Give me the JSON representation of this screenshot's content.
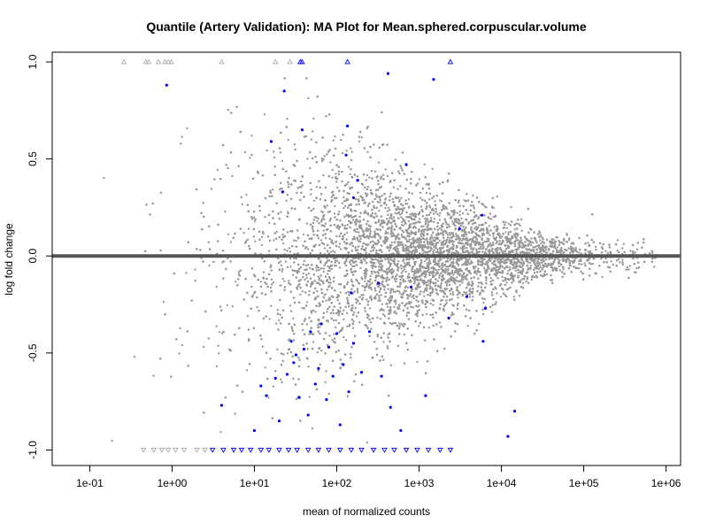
{
  "chart_data": {
    "type": "scatter",
    "title": "Quantile (Artery Validation): MA Plot for Mean.sphered.corpuscular.volume",
    "xlabel": "mean of normalized counts",
    "ylabel": "log fold change",
    "x_scale": "log10",
    "xlim": [
      0.035,
      1500000
    ],
    "ylim": [
      -1.08,
      1.05
    ],
    "x_ticks": [
      {
        "value": 0.1,
        "label": "1e-01"
      },
      {
        "value": 1,
        "label": "1e+00"
      },
      {
        "value": 10,
        "label": "1e+01"
      },
      {
        "value": 100,
        "label": "1e+02"
      },
      {
        "value": 1000,
        "label": "1e+03"
      },
      {
        "value": 10000,
        "label": "1e+04"
      },
      {
        "value": 100000,
        "label": "1e+05"
      },
      {
        "value": 1000000,
        "label": "1e+06"
      }
    ],
    "y_ticks": [
      {
        "value": -1.0,
        "label": "-1.0"
      },
      {
        "value": -0.5,
        "label": "-0.5"
      },
      {
        "value": 0.0,
        "label": "0.0"
      },
      {
        "value": 0.5,
        "label": "0.5"
      },
      {
        "value": 1.0,
        "label": "1.0"
      }
    ],
    "reference_line_y": 0,
    "colors": {
      "non_significant": "#999999",
      "significant": "#0000ff",
      "reference_line": "#555555",
      "outlier_gray": "#aaaaaa"
    },
    "series": [
      {
        "group": "significant",
        "points": [
          [
            0.86,
            0.88
          ],
          [
            16.0,
            0.59
          ],
          [
            22.0,
            0.33
          ],
          [
            23.0,
            0.85
          ],
          [
            38.0,
            0.65
          ],
          [
            135.0,
            0.67
          ],
          [
            160.0,
            0.3
          ],
          [
            180.0,
            0.39
          ],
          [
            700.0,
            0.47
          ],
          [
            130.0,
            0.52
          ],
          [
            420.0,
            0.94
          ],
          [
            1500.0,
            0.91
          ],
          [
            5800.0,
            0.21
          ],
          [
            3100.0,
            0.14
          ],
          [
            4.0,
            -0.77
          ],
          [
            10.0,
            -0.9
          ],
          [
            12.0,
            -0.67
          ],
          [
            14.0,
            -0.72
          ],
          [
            18.0,
            -0.63
          ],
          [
            20.0,
            -0.85
          ],
          [
            25.0,
            -0.61
          ],
          [
            28.0,
            -0.44
          ],
          [
            30.0,
            -0.55
          ],
          [
            32.0,
            -0.51
          ],
          [
            35.0,
            -0.73
          ],
          [
            40.0,
            -0.48
          ],
          [
            45.0,
            -0.82
          ],
          [
            48.0,
            -0.39
          ],
          [
            55.0,
            -0.66
          ],
          [
            60.0,
            -0.58
          ],
          [
            65.0,
            -0.35
          ],
          [
            75.0,
            -0.74
          ],
          [
            80.0,
            -0.47
          ],
          [
            90.0,
            -0.62
          ],
          [
            100.0,
            -0.4
          ],
          [
            110.0,
            -0.87
          ],
          [
            120.0,
            -0.56
          ],
          [
            140.0,
            -0.7
          ],
          [
            160.0,
            -0.45
          ],
          [
            200.0,
            -0.6
          ],
          [
            250.0,
            -0.39
          ],
          [
            350.0,
            -0.62
          ],
          [
            450.0,
            -0.78
          ],
          [
            600.0,
            -0.9
          ],
          [
            800.0,
            -0.16
          ],
          [
            1200.0,
            -0.72
          ],
          [
            2300.0,
            -0.32
          ],
          [
            6000.0,
            -0.44
          ],
          [
            12000.0,
            -0.93
          ],
          [
            14500.0,
            -0.8
          ],
          [
            6400.0,
            -0.27
          ],
          [
            3800.0,
            -0.21
          ],
          [
            320.0,
            -0.14
          ],
          [
            150.0,
            -0.19
          ]
        ]
      },
      {
        "group": "outlier_up",
        "points": [
          [
            0.26,
            1.0
          ],
          [
            0.48,
            1.0
          ],
          [
            0.52,
            1.0
          ],
          [
            0.68,
            1.0
          ],
          [
            0.82,
            1.0
          ],
          [
            0.9,
            1.0
          ],
          [
            0.98,
            1.0
          ],
          [
            4.0,
            1.0
          ],
          [
            18.0,
            1.0
          ],
          [
            27.0,
            1.0
          ],
          [
            36.0,
            1.0
          ],
          [
            38.0,
            1.0
          ],
          [
            135.0,
            1.0
          ],
          [
            2400.0,
            1.0
          ]
        ]
      },
      {
        "group": "outlier_down",
        "points": [
          [
            0.45,
            -1.0
          ],
          [
            0.6,
            -1.0
          ],
          [
            0.75,
            -1.0
          ],
          [
            0.9,
            -1.0
          ],
          [
            1.1,
            -1.0
          ],
          [
            1.4,
            -1.0
          ],
          [
            2.0,
            -1.0
          ],
          [
            2.5,
            -1.0
          ],
          [
            3.1,
            -1.0
          ],
          [
            4.2,
            -1.0
          ],
          [
            5.6,
            -1.0
          ],
          [
            7.0,
            -1.0
          ],
          [
            9.0,
            -1.0
          ],
          [
            12.0,
            -1.0
          ],
          [
            15.0,
            -1.0
          ],
          [
            20.0,
            -1.0
          ],
          [
            26.0,
            -1.0
          ],
          [
            33.0,
            -1.0
          ],
          [
            45.0,
            -1.0
          ],
          [
            60.0,
            -1.0
          ],
          [
            80.0,
            -1.0
          ],
          [
            110.0,
            -1.0
          ],
          [
            150.0,
            -1.0
          ],
          [
            200.0,
            -1.0
          ],
          [
            280.0,
            -1.0
          ],
          [
            380.0,
            -1.0
          ],
          [
            500.0,
            -1.0
          ],
          [
            700.0,
            -1.0
          ],
          [
            950.0,
            -1.0
          ],
          [
            1300.0,
            -1.0
          ],
          [
            1800.0,
            -1.0
          ],
          [
            2400.0,
            -1.0
          ]
        ]
      }
    ],
    "background_cloud": {
      "description": "dense gray cloud of non-significant genes",
      "n_points": 9000,
      "x_range_log10": [
        -1.3,
        5.9
      ],
      "spread_at_low_counts": 0.55,
      "spread_at_high_counts": 0.05
    }
  }
}
